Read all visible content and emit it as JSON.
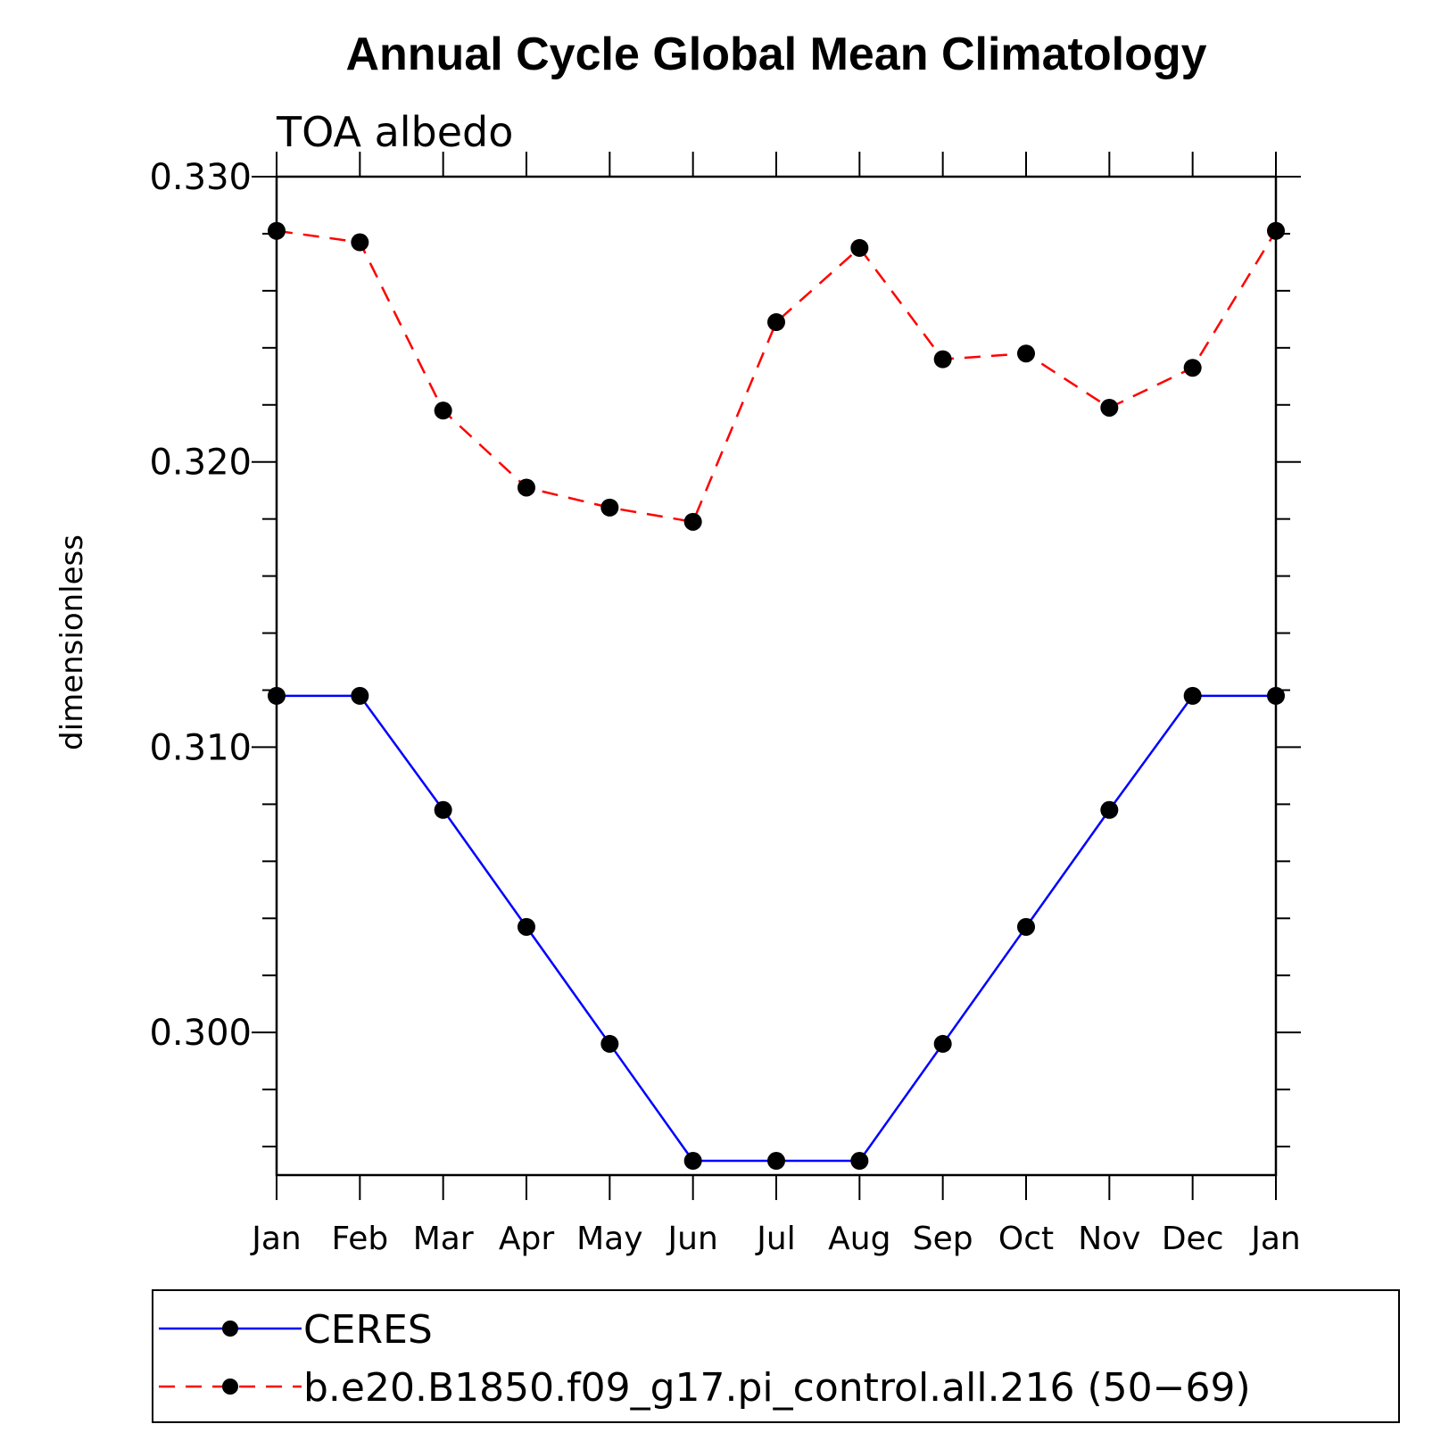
{
  "chart_data": {
    "type": "line",
    "title": "Annual Cycle Global Mean Climatology",
    "subtitle": "TOA albedo",
    "ylabel": "dimensionless",
    "xlabel": "",
    "categories": [
      "Jan",
      "Feb",
      "Mar",
      "Apr",
      "May",
      "Jun",
      "Jul",
      "Aug",
      "Sep",
      "Oct",
      "Nov",
      "Dec",
      "Jan"
    ],
    "ylim": [
      0.295,
      0.33
    ],
    "yticks": [
      "0.300",
      "0.310",
      "0.320",
      "0.330"
    ],
    "yticks_values": [
      0.3,
      0.31,
      0.32,
      0.33
    ],
    "grid": false,
    "legend_position": "bottom",
    "series": [
      {
        "name": "CERES",
        "color": "#0000ff",
        "dash": "solid",
        "values": [
          0.3118,
          0.3118,
          0.3078,
          0.3037,
          0.2996,
          0.2955,
          0.2955,
          0.2955,
          0.2996,
          0.3037,
          0.3078,
          0.3118,
          0.3118
        ]
      },
      {
        "name": "b.e20.B1850.f09_g17.pi_control.all.216 (50−69)",
        "color": "#ff0000",
        "dash": "dashed",
        "values": [
          0.3281,
          0.3277,
          0.3218,
          0.3191,
          0.3184,
          0.3179,
          0.3249,
          0.3275,
          0.3236,
          0.3238,
          0.3219,
          0.3233,
          0.3281
        ]
      }
    ]
  }
}
